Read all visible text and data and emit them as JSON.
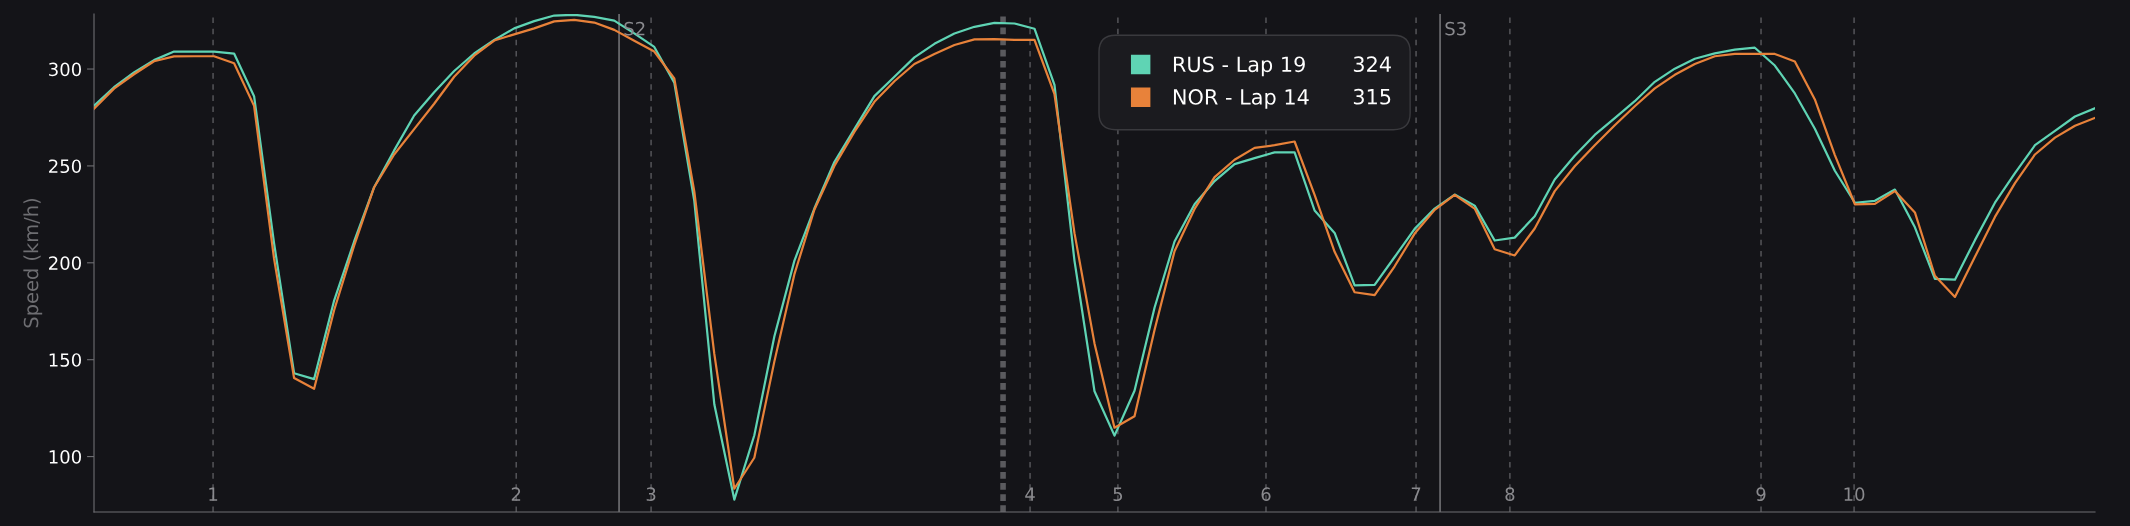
{
  "chart_data": {
    "type": "line",
    "ylabel": "Speed (km/h)",
    "categories": [
      null,
      null,
      null,
      null,
      null,
      null,
      null,
      null,
      null,
      null,
      null,
      null,
      null,
      null,
      null,
      null,
      null,
      null,
      null,
      null,
      null,
      null,
      null,
      null,
      null,
      null,
      null,
      null,
      null,
      null,
      null,
      null,
      null,
      null,
      null,
      null,
      null,
      null,
      null,
      null,
      null,
      null,
      null,
      null,
      null,
      null,
      null,
      null,
      null,
      null,
      null,
      null,
      null,
      null,
      null,
      null,
      null,
      null,
      null,
      null,
      null,
      null,
      null,
      null,
      null,
      null,
      null,
      null,
      null,
      null,
      null,
      null,
      null,
      null,
      null,
      null,
      null,
      null,
      null,
      null,
      null,
      null,
      null,
      null,
      null,
      null,
      null,
      null,
      null,
      null,
      null,
      null,
      null,
      null,
      null,
      null,
      null,
      null,
      null,
      null,
      null
    ],
    "ylim": [
      71.4,
      328.4
    ],
    "yticks": [
      100,
      150,
      200,
      250,
      300
    ],
    "tick_labels": "y",
    "grid": "x",
    "legend": "top",
    "line_style": "solid",
    "annotations": [
      "324",
      "315",
      "1",
      "2",
      "3",
      "4",
      "5",
      "6",
      "7",
      "8",
      "9",
      "10",
      "S2",
      "S3"
    ],
    "series": [
      {
        "name": "RUS - Lap 19",
        "color": "#5fd4b4",
        "values": [
          281,
          290.6,
          298.2,
          304.6,
          309,
          309,
          309,
          308,
          286,
          210,
          143,
          140,
          180.5,
          211,
          239,
          258,
          276,
          288,
          299,
          308,
          315,
          321,
          324.7,
          327.6,
          328,
          326.9,
          325,
          318.4,
          311.4,
          293,
          232,
          127,
          77.8,
          111,
          162,
          201,
          228,
          252,
          269,
          286,
          296,
          306,
          313,
          318.3,
          321.8,
          323.8,
          323.5,
          320.8,
          291.8,
          201,
          133.7,
          110.8,
          134,
          176.8,
          211,
          230.2,
          242.2,
          250.9,
          254,
          257,
          257,
          227,
          215.4,
          188.4,
          188.6,
          203,
          217.5,
          228,
          235.2,
          229.5,
          211.5,
          213,
          224,
          243,
          255.2,
          266,
          274.7,
          283.4,
          293.4,
          300.2,
          305.3,
          308.1,
          310,
          311,
          301.8,
          287.4,
          269.2,
          247.5,
          231,
          232,
          237.8,
          218.3,
          191.7,
          191.3,
          211.7,
          231,
          246.3,
          260.7,
          268.1,
          275.5,
          279.8
        ]
      },
      {
        "name": "NOR - Lap 14",
        "color": "#e8823a",
        "values": [
          279.5,
          289.9,
          297.3,
          304,
          306.5,
          306.6,
          306.6,
          303,
          281,
          202,
          140.5,
          135,
          175.5,
          208.9,
          239,
          255.9,
          269,
          282.1,
          296,
          306.9,
          314.7,
          317.9,
          321,
          324.6,
          325.4,
          324,
          320.2,
          314.6,
          309,
          295.1,
          236.8,
          153,
          83.4,
          99.4,
          149,
          194,
          227.4,
          250,
          267.6,
          283.1,
          293.7,
          302.6,
          307.8,
          312.4,
          315.3,
          315.4,
          315,
          315,
          287,
          215.3,
          158.4,
          114.9,
          120.8,
          165.3,
          206,
          227.8,
          244.2,
          253.2,
          259.3,
          260.7,
          262.6,
          235.1,
          205.7,
          184.8,
          183.3,
          198.2,
          215.1,
          227.3,
          235.1,
          228,
          207,
          203.8,
          217.7,
          237,
          249.8,
          260.7,
          271,
          280.8,
          290,
          297,
          302.6,
          306.6,
          307.8,
          307.8,
          307.8,
          303.9,
          284.3,
          255.6,
          230.2,
          230.4,
          237,
          226,
          193.3,
          182.4,
          203.1,
          223.7,
          241.1,
          255.9,
          264.6,
          270.7,
          274.8
        ]
      }
    ]
  }
}
